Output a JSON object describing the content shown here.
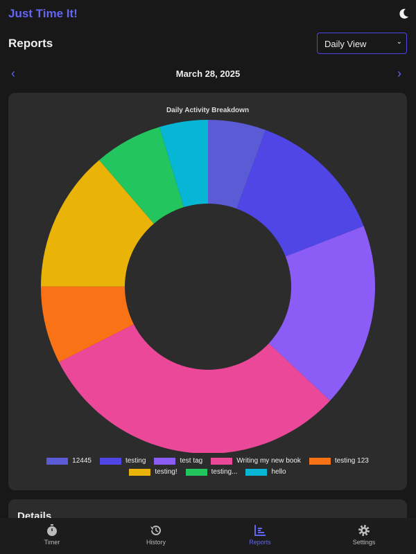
{
  "header": {
    "app_title": "Just Time It!",
    "theme_icon": "moon-icon"
  },
  "page": {
    "title": "Reports",
    "view_select": {
      "selected": "Daily View"
    },
    "date": "March 28, 2025"
  },
  "chart_data": {
    "type": "pie",
    "variant": "doughnut",
    "title": "Daily Activity Breakdown",
    "legend_position": "bottom",
    "unit": "percent of total (estimated)",
    "categories": [
      "12445",
      "testing",
      "test tag",
      "Writing my new book",
      "testing 123",
      "testing!",
      "testing...",
      "hello"
    ],
    "values": [
      5.6,
      13.5,
      17.9,
      30.6,
      7.5,
      13.7,
      6.6,
      4.7
    ],
    "colors": [
      "#5b5bd6",
      "#4f46e5",
      "#8b5cf6",
      "#ec4899",
      "#f97316",
      "#eab308",
      "#22c55e",
      "#06b6d4"
    ]
  },
  "details": {
    "title": "Details"
  },
  "bottom_nav": [
    {
      "label": "Timer",
      "icon": "stopwatch-icon"
    },
    {
      "label": "History",
      "icon": "history-icon"
    },
    {
      "label": "Reports",
      "icon": "chart-icon",
      "active": true
    },
    {
      "label": "Settings",
      "icon": "gear-icon"
    }
  ],
  "colors": {
    "accent": "#6366f1",
    "background": "#181818",
    "card": "#2c2c2c"
  }
}
